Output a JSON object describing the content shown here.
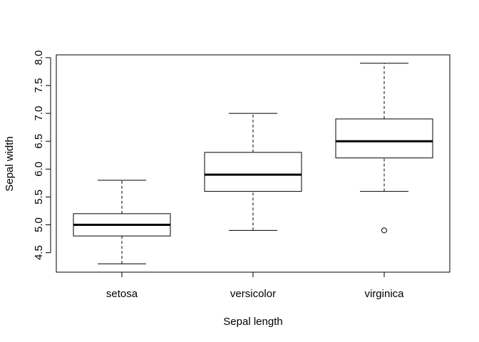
{
  "chart_data": {
    "type": "boxplot",
    "title": "",
    "xlabel": "Sepal length",
    "ylabel": "Sepal width",
    "categories": [
      "setosa",
      "versicolor",
      "virginica"
    ],
    "ylim": [
      4.15,
      8.05
    ],
    "yticks": [
      "4.5",
      "5.0",
      "5.5",
      "6.0",
      "6.5",
      "7.0",
      "7.5",
      "8.0"
    ],
    "grid": false,
    "legend": "none",
    "boxes": [
      {
        "category": "setosa",
        "whisker_low": 4.3,
        "q1": 4.8,
        "median": 5.0,
        "q3": 5.2,
        "whisker_high": 5.8,
        "outliers": []
      },
      {
        "category": "versicolor",
        "whisker_low": 4.9,
        "q1": 5.6,
        "median": 5.9,
        "q3": 6.3,
        "whisker_high": 7.0,
        "outliers": []
      },
      {
        "category": "virginica",
        "whisker_low": 5.6,
        "q1": 6.2,
        "median": 6.5,
        "q3": 6.9,
        "whisker_high": 7.9,
        "outliers": [
          4.9
        ]
      }
    ],
    "colors": {
      "box_fill": "#ffffff",
      "stroke": "#000000"
    }
  }
}
